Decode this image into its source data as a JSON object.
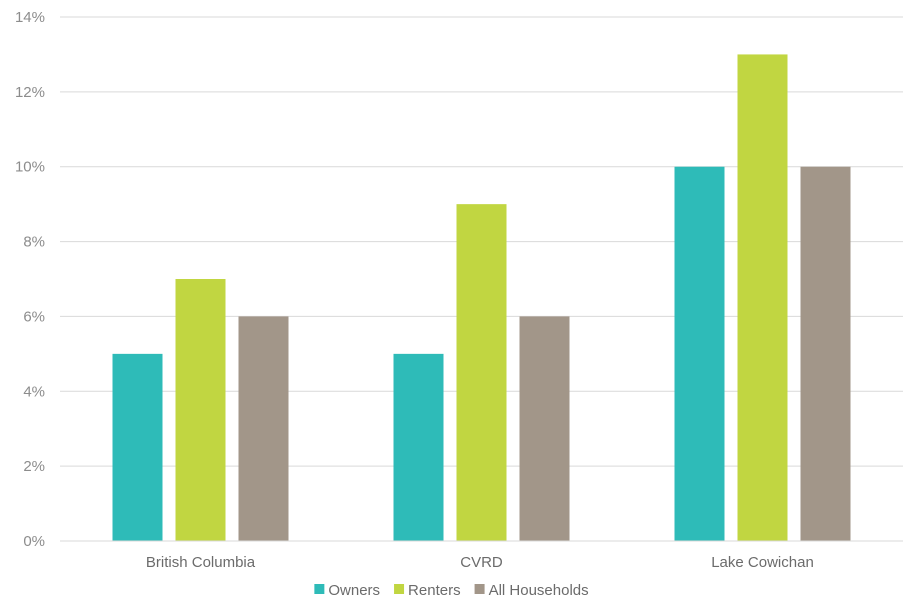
{
  "chart_data": {
    "type": "bar",
    "title": "",
    "xlabel": "",
    "ylabel": "",
    "categories": [
      "British Columbia",
      "CVRD",
      "Lake Cowichan"
    ],
    "series": [
      {
        "name": "Owners",
        "values": [
          5,
          5,
          10
        ],
        "color": "#2ebbb8"
      },
      {
        "name": "Renters",
        "values": [
          7,
          9,
          13
        ],
        "color": "#c1d641"
      },
      {
        "name": "All Households",
        "values": [
          6,
          6,
          10
        ],
        "color": "#a29689"
      }
    ],
    "ylim": [
      0,
      14
    ],
    "yticks": [
      0,
      2,
      4,
      6,
      8,
      10,
      12,
      14
    ],
    "ytick_labels": [
      "0%",
      "2%",
      "4%",
      "6%",
      "8%",
      "10%",
      "12%",
      "14%"
    ],
    "grid": true,
    "legend_position": "bottom"
  }
}
